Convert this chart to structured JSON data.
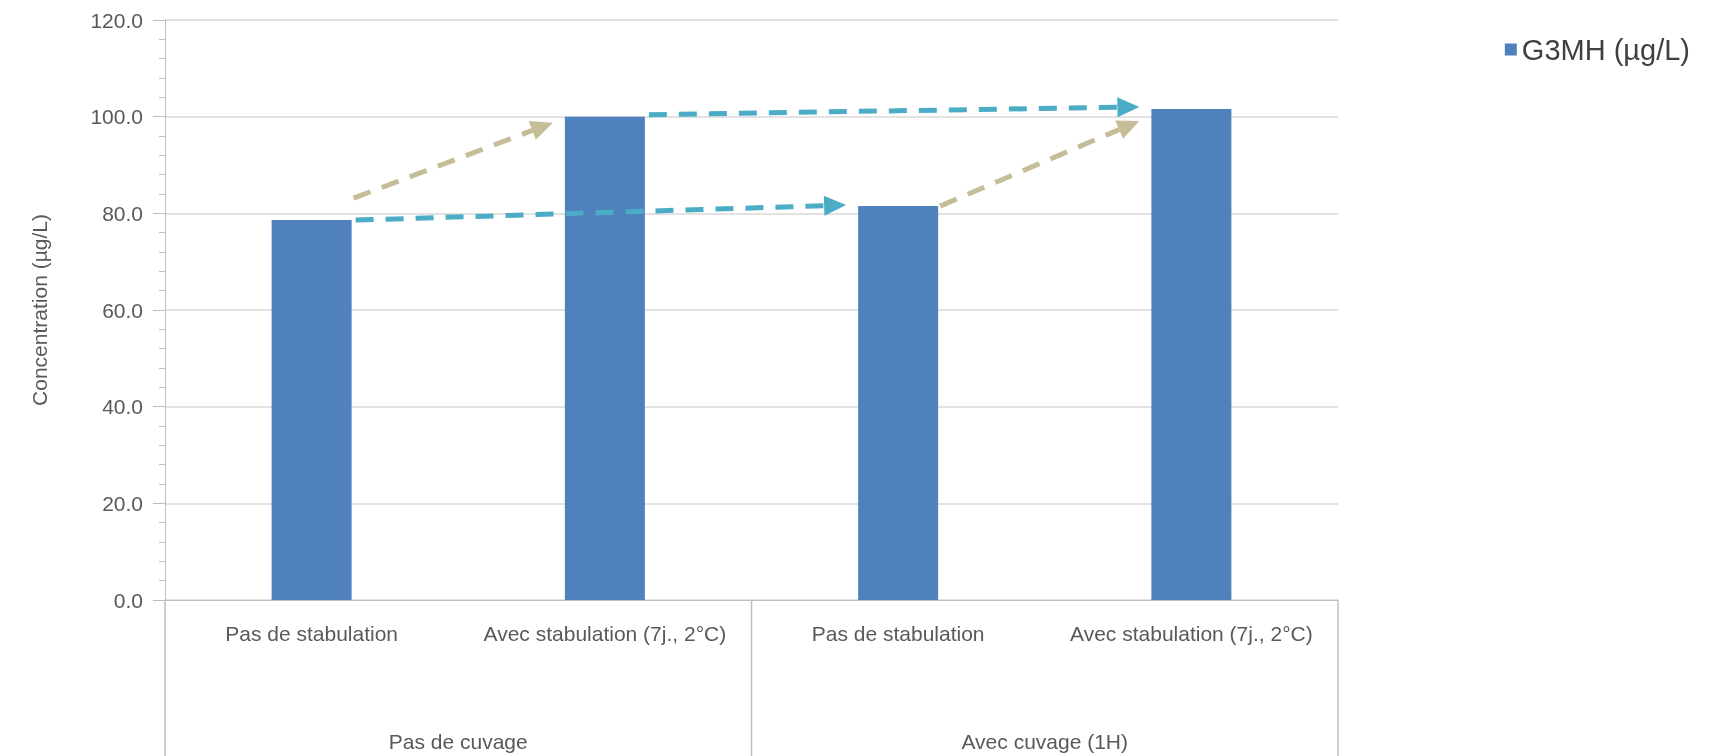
{
  "chart_data": {
    "type": "bar",
    "ylabel": "Concentration (µg/L)",
    "categories": [
      "Pas de stabulation",
      "Avec stabulation (7j., 2°C)",
      "Pas de stabulation",
      "Avec stabulation (7j., 2°C)"
    ],
    "series": [
      {
        "name": "G3MH (µg/L)",
        "color": "#4f81bd",
        "values": [
          78.6,
          100.0,
          81.5,
          101.6
        ]
      }
    ],
    "ylim": [
      0,
      120
    ],
    "yticks": [
      {
        "value": 0,
        "label": "0.0"
      },
      {
        "value": 20,
        "label": "20.0"
      },
      {
        "value": 40,
        "label": "40.0"
      },
      {
        "value": 60,
        "label": "60.0"
      },
      {
        "value": 80,
        "label": "80.0"
      },
      {
        "value": 100,
        "label": "100.0"
      },
      {
        "value": 120,
        "label": "120.0"
      }
    ],
    "annotations": [
      "Pas de cuvage",
      "Avec cuvage (1H)"
    ],
    "grid": "y",
    "legend": "top right"
  }
}
